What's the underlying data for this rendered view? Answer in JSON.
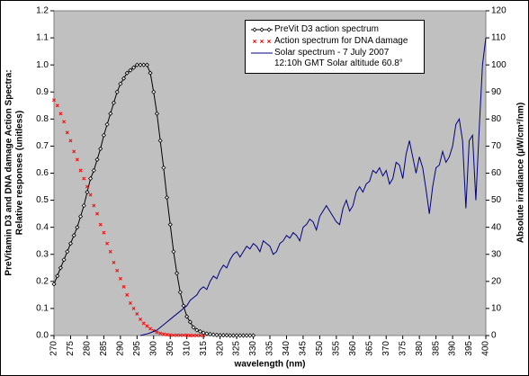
{
  "chart_data": {
    "type": "line",
    "xlabel": "wavelength (nm)",
    "ylabel": [
      "PreVitamin D3 and DNA damage Action Spectra:",
      "Relative responses (unitless)"
    ],
    "y2label": "Absolute irradiance (µW/cm²/nm)",
    "xlim": [
      270,
      400
    ],
    "ylim": [
      0,
      1.2
    ],
    "y2lim": [
      0,
      120
    ],
    "xticks": [
      270,
      275,
      280,
      285,
      290,
      295,
      300,
      305,
      310,
      315,
      320,
      325,
      330,
      335,
      340,
      345,
      350,
      355,
      360,
      365,
      370,
      375,
      380,
      385,
      390,
      395,
      400
    ],
    "yticks": [
      {
        "value": 0,
        "label": "0.0"
      },
      0.1,
      0.2,
      0.3,
      0.4,
      0.5,
      0.6,
      0.7,
      0.8,
      0.9,
      {
        "value": 1,
        "label": "1.0"
      },
      1.1,
      1.2
    ],
    "y2ticks": [
      0,
      10,
      20,
      30,
      40,
      50,
      60,
      70,
      80,
      90,
      100,
      110,
      120
    ],
    "series": [
      {
        "name": "PreVit D3 action spectrum",
        "color": "#000000",
        "marker": "diamond",
        "line": true,
        "x": [
          270,
          271,
          272,
          273,
          274,
          275,
          276,
          277,
          278,
          279,
          280,
          281,
          282,
          283,
          284,
          285,
          286,
          287,
          288,
          289,
          290,
          291,
          292,
          293,
          294,
          295,
          296,
          297,
          298,
          299,
          300,
          301,
          302,
          303,
          304,
          305,
          306,
          307,
          308,
          309,
          310,
          311,
          312,
          313,
          314,
          315,
          316,
          317,
          318,
          319,
          320,
          321,
          322,
          323,
          324,
          325,
          326,
          327,
          328,
          329,
          330
        ],
        "values": [
          0.19,
          0.22,
          0.25,
          0.28,
          0.31,
          0.34,
          0.37,
          0.4,
          0.44,
          0.48,
          0.53,
          0.58,
          0.61,
          0.65,
          0.69,
          0.74,
          0.78,
          0.82,
          0.86,
          0.9,
          0.93,
          0.95,
          0.97,
          0.98,
          0.99,
          1.0,
          1.0,
          1.0,
          1.0,
          0.97,
          0.9,
          0.82,
          0.72,
          0.62,
          0.51,
          0.41,
          0.31,
          0.23,
          0.16,
          0.11,
          0.07,
          0.05,
          0.03,
          0.02,
          0.015,
          0.01,
          0.007,
          0.005,
          0.003,
          0.002,
          0.001,
          0.001,
          0.001,
          0,
          0,
          0,
          0,
          0,
          0,
          0,
          0
        ]
      },
      {
        "name": "Action spectrum for DNA damage",
        "color": "#ff0000",
        "marker": "x",
        "line": false,
        "x": [
          270,
          271,
          272,
          273,
          274,
          275,
          276,
          277,
          278,
          279,
          280,
          281,
          282,
          283,
          284,
          285,
          286,
          287,
          288,
          289,
          290,
          291,
          292,
          293,
          294,
          295,
          296,
          297,
          298,
          299,
          300,
          301,
          302,
          303,
          304,
          305,
          306,
          307,
          308,
          309,
          310,
          311,
          312,
          313,
          314,
          315
        ],
        "values": [
          0.87,
          0.85,
          0.82,
          0.79,
          0.75,
          0.72,
          0.68,
          0.65,
          0.61,
          0.58,
          0.55,
          0.52,
          0.48,
          0.45,
          0.41,
          0.38,
          0.34,
          0.31,
          0.27,
          0.24,
          0.21,
          0.18,
          0.15,
          0.12,
          0.1,
          0.08,
          0.06,
          0.045,
          0.035,
          0.025,
          0.018,
          0.012,
          0.008,
          0.005,
          0.003,
          0.002,
          0.001,
          0.001,
          0.001,
          0.001,
          0.001,
          0,
          0,
          0,
          0,
          0
        ]
      },
      {
        "name": "Solar spectrum - 7 July 2007\n12:10h GMT Solar altitude 60.8°",
        "color": "#000080",
        "marker": null,
        "line": true,
        "axis": "y2",
        "x": [
          296,
          297,
          298,
          299,
          300,
          301,
          302,
          303,
          304,
          305,
          306,
          307,
          308,
          309,
          310,
          311,
          312,
          313,
          314,
          315,
          316,
          317,
          318,
          319,
          320,
          321,
          322,
          323,
          324,
          325,
          326,
          327,
          328,
          329,
          330,
          331,
          332,
          333,
          334,
          335,
          336,
          337,
          338,
          339,
          340,
          341,
          342,
          343,
          344,
          345,
          346,
          347,
          348,
          349,
          350,
          351,
          352,
          353,
          354,
          355,
          356,
          357,
          358,
          359,
          360,
          361,
          362,
          363,
          364,
          365,
          366,
          367,
          368,
          369,
          370,
          371,
          372,
          373,
          374,
          375,
          376,
          377,
          378,
          379,
          380,
          381,
          382,
          383,
          384,
          385,
          386,
          387,
          388,
          389,
          390,
          391,
          392,
          393,
          394,
          395,
          396,
          397,
          398,
          399,
          400
        ],
        "values": [
          0,
          0.3,
          0.6,
          1,
          1.5,
          2,
          3,
          4,
          5,
          6,
          7,
          8,
          9,
          10,
          11,
          13,
          14,
          15,
          17,
          18,
          17,
          20,
          22,
          21,
          24,
          26,
          25,
          28,
          30,
          31,
          29,
          31,
          33,
          32,
          34,
          33,
          31,
          35,
          34,
          33,
          30,
          31,
          34,
          35,
          37,
          36,
          38,
          37,
          35,
          40,
          41,
          43,
          42,
          39,
          44,
          46,
          48,
          46,
          44,
          42,
          41,
          47,
          50,
          46,
          48,
          53,
          55,
          53,
          56,
          57,
          61,
          60,
          62,
          59,
          61,
          56,
          58,
          64,
          63,
          58,
          67,
          72,
          66,
          60,
          66,
          62,
          54,
          45,
          55,
          62,
          63,
          68,
          64,
          66,
          70,
          78,
          80,
          72,
          47,
          72,
          74,
          50,
          76,
          100,
          110
        ]
      }
    ]
  }
}
